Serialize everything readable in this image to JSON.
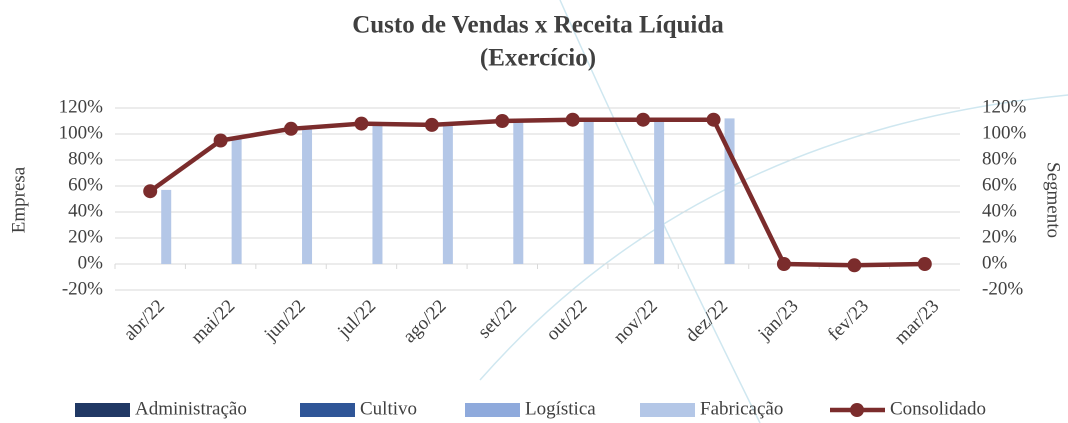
{
  "chart_data": {
    "type": "bar-line",
    "title": [
      "Custo de Vendas x Receita Líquida",
      "(Exercício)"
    ],
    "y_label": "Empresa",
    "y2_label": "Segmento",
    "categories": [
      "abr/22",
      "mai/22",
      "jun/22",
      "jul/22",
      "ago/22",
      "set/22",
      "out/22",
      "nov/22",
      "dez/22",
      "jan/23",
      "fev/23",
      "mar/23"
    ],
    "series": [
      {
        "name": "Administração",
        "color": "#203864",
        "type": "bar",
        "values": [
          null,
          null,
          null,
          null,
          null,
          null,
          null,
          null,
          null,
          null,
          null,
          null
        ]
      },
      {
        "name": "Cultivo",
        "color": "#2f5597",
        "type": "bar",
        "values": [
          null,
          null,
          null,
          null,
          null,
          null,
          null,
          null,
          null,
          null,
          null,
          null
        ]
      },
      {
        "name": "Logística",
        "color": "#8faadc",
        "type": "bar",
        "values": [
          null,
          null,
          null,
          null,
          null,
          null,
          null,
          null,
          null,
          null,
          null,
          null
        ]
      },
      {
        "name": "Fabricação",
        "color": "#b4c7e7",
        "type": "bar",
        "values": [
          57,
          98,
          104,
          108,
          107,
          110,
          111,
          111,
          112,
          null,
          null,
          null
        ]
      },
      {
        "name": "Consolidado",
        "color": "#7b2c2c",
        "type": "line",
        "axis": "y2",
        "values": [
          56,
          95,
          104,
          108,
          107,
          110,
          111,
          111,
          111,
          0,
          -1,
          0
        ]
      }
    ],
    "ylim": [
      -20,
      120
    ],
    "yticks": [
      {
        "value": -20,
        "label": "-20%"
      },
      {
        "value": 0,
        "label": "0%"
      },
      {
        "value": 20,
        "label": "20%"
      },
      {
        "value": 40,
        "label": "40%"
      },
      {
        "value": 60,
        "label": "60%"
      },
      {
        "value": 80,
        "label": "80%"
      },
      {
        "value": 100,
        "label": "100%"
      },
      {
        "value": 120,
        "label": "120%"
      }
    ],
    "y2lim": [
      -20,
      120
    ],
    "y2ticks": [
      {
        "value": -20,
        "label": "-20%"
      },
      {
        "value": 0,
        "label": "0%"
      },
      {
        "value": 20,
        "label": "20%"
      },
      {
        "value": 40,
        "label": "40%"
      },
      {
        "value": 60,
        "label": "60%"
      },
      {
        "value": 80,
        "label": "80%"
      },
      {
        "value": 100,
        "label": "100%"
      },
      {
        "value": 120,
        "label": "120%"
      }
    ],
    "grid": true,
    "legend": "bottom"
  }
}
